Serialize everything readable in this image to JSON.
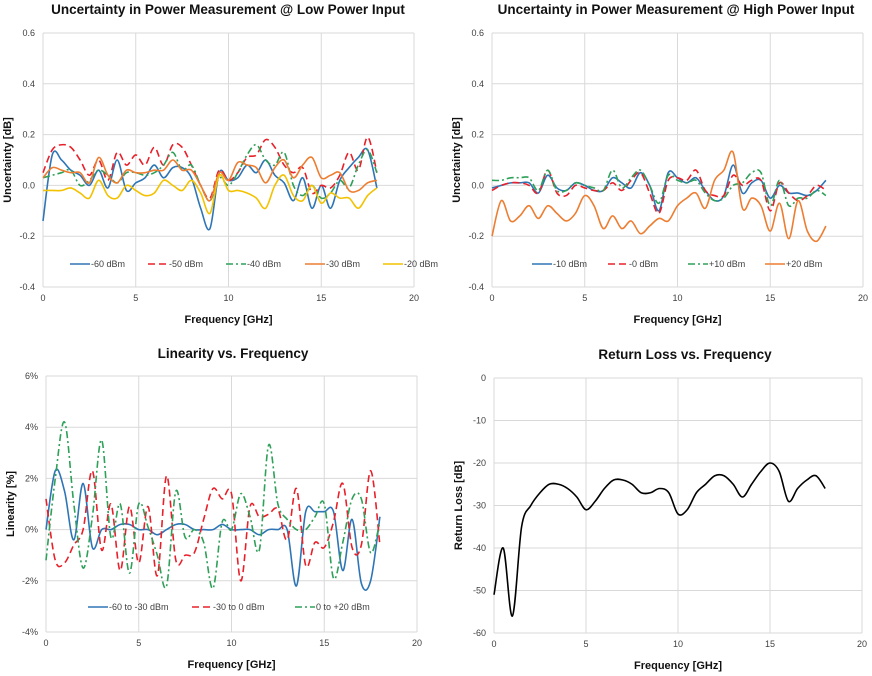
{
  "chart_data": [
    {
      "type": "line",
      "title": "Uncertainty in Power Measurement @ Low Power Input",
      "xlabel": "Frequency [GHz]",
      "ylabel": "Uncertainty [dB]",
      "xlim": [
        0,
        20
      ],
      "ylim": [
        -0.4,
        0.6
      ],
      "xticks": [
        "0",
        "5",
        "10",
        "15",
        "20"
      ],
      "yticks": [
        "-0.4",
        "-0.2",
        "0.0",
        "0.2",
        "0.4",
        "0.6"
      ],
      "grid": true,
      "legend": "bottom-inside",
      "x": [
        0,
        0.5,
        1,
        1.5,
        2,
        2.5,
        3,
        3.5,
        4,
        4.5,
        5,
        5.5,
        6,
        6.5,
        7,
        7.5,
        8,
        8.5,
        9,
        9.5,
        10,
        10.5,
        11,
        11.5,
        12,
        12.5,
        13,
        13.5,
        14,
        14.5,
        15,
        15.5,
        16,
        16.5,
        17,
        17.5,
        18
      ],
      "series": [
        {
          "name": "-60 dBm",
          "color": "#2e75b6",
          "dash": "solid",
          "values": [
            -0.14,
            0.12,
            0.1,
            0.06,
            0.04,
            0.0,
            0.06,
            -0.01,
            0.1,
            -0.02,
            0.01,
            0.03,
            0.08,
            0.03,
            0.07,
            0.07,
            0.03,
            -0.09,
            -0.17,
            0.05,
            0.02,
            0.03,
            0.08,
            0.05,
            0.1,
            0.04,
            0.01,
            -0.06,
            0.03,
            -0.09,
            0.0,
            -0.09,
            0.02,
            0.07,
            0.11,
            0.14,
            -0.01
          ]
        },
        {
          "name": "-50 dBm",
          "color": "#e8202a",
          "dash": "dash",
          "values": [
            0.05,
            0.14,
            0.16,
            0.15,
            0.1,
            0.04,
            0.1,
            0.02,
            0.13,
            0.08,
            0.12,
            0.08,
            0.15,
            0.08,
            0.16,
            0.15,
            0.08,
            0.0,
            -0.05,
            0.06,
            0.02,
            0.05,
            0.11,
            0.12,
            0.18,
            0.15,
            0.08,
            0.05,
            0.07,
            -0.03,
            0.0,
            -0.01,
            0.04,
            0.13,
            0.06,
            0.19,
            0.05
          ]
        },
        {
          "name": "-40 dBm",
          "color": "#2ea058",
          "dash": "dashdot",
          "values": [
            0.03,
            0.04,
            0.05,
            0.06,
            0.0,
            0.02,
            0.06,
            0.04,
            0.01,
            0.05,
            0.05,
            0.04,
            0.05,
            0.08,
            0.13,
            0.06,
            0.08,
            0.0,
            -0.06,
            0.03,
            0.0,
            0.05,
            0.12,
            0.16,
            0.1,
            0.08,
            0.13,
            0.0,
            -0.04,
            0.0,
            -0.05,
            -0.03,
            0.02,
            -0.01,
            0.08,
            0.14,
            0.05
          ]
        },
        {
          "name": "-30 dBm",
          "color": "#ed7d31",
          "dash": "solid",
          "values": [
            0.03,
            0.07,
            0.06,
            0.05,
            0.05,
            0.01,
            0.11,
            0.04,
            0.01,
            0.06,
            0.05,
            0.05,
            0.06,
            0.06,
            0.1,
            0.06,
            0.06,
            0.0,
            -0.06,
            0.05,
            0.02,
            0.09,
            0.08,
            0.07,
            0.01,
            0.07,
            0.1,
            0.03,
            0.08,
            0.11,
            0.03,
            0.04,
            0.05,
            -0.02,
            -0.02,
            0.01,
            0.02
          ]
        },
        {
          "name": "-20 dBm",
          "color": "#f2c200",
          "dash": "solid",
          "values": [
            -0.02,
            -0.02,
            -0.02,
            -0.01,
            -0.03,
            -0.05,
            0.02,
            -0.04,
            -0.05,
            0.0,
            -0.02,
            -0.04,
            -0.03,
            0.02,
            0.0,
            -0.02,
            0.02,
            -0.03,
            -0.11,
            0.04,
            -0.02,
            -0.02,
            -0.03,
            -0.05,
            -0.09,
            0.0,
            0.04,
            -0.04,
            -0.06,
            0.0,
            -0.07,
            -0.03,
            -0.05,
            -0.05,
            -0.09,
            -0.04,
            -0.01
          ]
        }
      ]
    },
    {
      "type": "line",
      "title": "Uncertainty in Power Measurement @ High Power Input",
      "xlabel": "Frequency [GHz]",
      "ylabel": "Uncertainty [dB]",
      "xlim": [
        0,
        20
      ],
      "ylim": [
        -0.4,
        0.6
      ],
      "xticks": [
        "0",
        "5",
        "10",
        "15",
        "20"
      ],
      "yticks": [
        "-0.4",
        "-0.2",
        "0.0",
        "0.2",
        "0.4",
        "0.6"
      ],
      "grid": true,
      "legend": "bottom-inside",
      "x": [
        0,
        0.5,
        1,
        1.5,
        2,
        2.5,
        3,
        3.5,
        4,
        4.5,
        5,
        5.5,
        6,
        6.5,
        7,
        7.5,
        8,
        8.5,
        9,
        9.5,
        10,
        10.5,
        11,
        11.5,
        12,
        12.5,
        13,
        13.5,
        14,
        14.5,
        15,
        15.5,
        16,
        16.5,
        17,
        17.5,
        18
      ],
      "series": [
        {
          "name": "-10 dBm",
          "color": "#2e75b6",
          "dash": "solid",
          "values": [
            -0.01,
            0.0,
            0.01,
            0.01,
            0.01,
            -0.03,
            0.04,
            -0.01,
            -0.02,
            0.01,
            0.0,
            -0.02,
            -0.02,
            0.03,
            0.01,
            -0.01,
            0.05,
            0.0,
            -0.1,
            0.05,
            0.03,
            0.01,
            0.03,
            -0.02,
            -0.06,
            -0.04,
            0.08,
            -0.03,
            0.01,
            0.02,
            -0.05,
            0.0,
            -0.03,
            -0.03,
            -0.04,
            -0.02,
            0.02
          ]
        },
        {
          "name": "-0 dBm",
          "color": "#e8202a",
          "dash": "dash",
          "values": [
            -0.02,
            0.0,
            0.01,
            0.01,
            0.0,
            -0.03,
            0.06,
            -0.03,
            -0.04,
            0.0,
            -0.01,
            -0.02,
            -0.02,
            0.01,
            -0.02,
            0.02,
            0.05,
            -0.03,
            -0.11,
            0.02,
            0.03,
            0.02,
            0.06,
            -0.02,
            -0.04,
            -0.04,
            0.04,
            0.0,
            0.02,
            0.02,
            -0.1,
            0.01,
            -0.03,
            -0.06,
            -0.04,
            0.0,
            -0.02
          ]
        },
        {
          "name": "+10 dBm",
          "color": "#2ea058",
          "dash": "dashdot",
          "values": [
            0.02,
            0.02,
            0.03,
            0.03,
            0.03,
            -0.02,
            0.06,
            -0.02,
            -0.02,
            0.01,
            0.0,
            -0.01,
            -0.02,
            0.06,
            -0.01,
            0.03,
            0.06,
            0.0,
            -0.07,
            0.04,
            0.02,
            0.01,
            0.02,
            -0.03,
            -0.06,
            -0.05,
            0.0,
            0.01,
            0.05,
            0.05,
            -0.08,
            0.02,
            -0.08,
            -0.05,
            -0.05,
            -0.02,
            -0.04
          ]
        },
        {
          "name": "+20 dBm",
          "color": "#ed7d31",
          "dash": "solid",
          "values": [
            -0.2,
            -0.06,
            -0.14,
            -0.12,
            -0.08,
            -0.13,
            -0.08,
            -0.11,
            -0.14,
            -0.11,
            -0.04,
            -0.08,
            -0.17,
            -0.12,
            -0.17,
            -0.14,
            -0.19,
            -0.16,
            -0.13,
            -0.14,
            -0.08,
            -0.05,
            -0.03,
            -0.09,
            0.02,
            0.06,
            0.13,
            -0.09,
            -0.05,
            -0.08,
            -0.18,
            -0.07,
            -0.21,
            -0.06,
            -0.18,
            -0.22,
            -0.16
          ]
        }
      ]
    },
    {
      "type": "line",
      "title": "Linearity vs. Frequency",
      "xlabel": "Frequency [GHz]",
      "ylabel": "Linearity [%]",
      "xlim": [
        0,
        20
      ],
      "ylim": [
        -4,
        6
      ],
      "xticks": [
        "0",
        "5",
        "10",
        "15",
        "20"
      ],
      "yticks": [
        "-4%",
        "-2%",
        "0%",
        "2%",
        "4%",
        "6%"
      ],
      "grid": true,
      "legend": "bottom-inside",
      "x": [
        0,
        0.5,
        1,
        1.5,
        2,
        2.5,
        3,
        3.5,
        4,
        4.5,
        5,
        5.5,
        6,
        6.5,
        7,
        7.5,
        8,
        8.5,
        9,
        9.5,
        10,
        10.5,
        11,
        11.5,
        12,
        12.5,
        13,
        13.5,
        14,
        14.5,
        15,
        15.5,
        16,
        16.5,
        17,
        17.5,
        18
      ],
      "series": [
        {
          "name": "-60 to -30 dBm",
          "color": "#2e75b6",
          "dash": "solid",
          "values": [
            0.0,
            2.3,
            1.5,
            -0.4,
            1.8,
            -0.7,
            0.0,
            0.0,
            0.2,
            0.2,
            0.0,
            0.0,
            -0.2,
            0.0,
            0.2,
            0.2,
            0.0,
            0.0,
            0.0,
            0.2,
            0.0,
            0.0,
            0.0,
            -0.2,
            0.0,
            0.0,
            0.0,
            -2.2,
            0.7,
            0.7,
            0.7,
            0.7,
            -1.6,
            0.4,
            -2.1,
            -2.0,
            0.5
          ]
        },
        {
          "name": "-30 to 0 dBm",
          "color": "#e8202a",
          "dash": "dash",
          "values": [
            1.2,
            -1.2,
            -1.3,
            -0.6,
            0.0,
            2.3,
            -0.8,
            1.0,
            -1.6,
            0.9,
            -1.3,
            0.9,
            -1.8,
            2.1,
            -1.2,
            -1.0,
            -0.9,
            0.4,
            1.6,
            1.2,
            1.4,
            -2.0,
            0.9,
            0.5,
            0.6,
            0.8,
            -0.4,
            1.6,
            -1.4,
            -0.5,
            -0.7,
            0.3,
            1.8,
            -0.7,
            -0.6,
            2.3,
            -0.6
          ]
        },
        {
          "name": "0 to +20 dBm",
          "color": "#2ea058",
          "dash": "dashdot",
          "values": [
            -1.2,
            2.0,
            4.2,
            1.0,
            -1.5,
            0.5,
            3.5,
            -0.3,
            1.0,
            -1.7,
            1.0,
            0.1,
            -1.0,
            -2.2,
            1.5,
            -0.3,
            0.0,
            -0.5,
            -2.3,
            0.3,
            0.0,
            1.4,
            0.5,
            -0.8,
            3.3,
            1.0,
            0.4,
            0.0,
            0.0,
            0.5,
            1.0,
            -1.9,
            -0.5,
            1.2,
            1.2,
            -0.9,
            0.3
          ]
        }
      ]
    },
    {
      "type": "line",
      "title": "Return Loss vs. Frequency",
      "xlabel": "Frequency [GHz]",
      "ylabel": "Return Loss [dB]",
      "xlim": [
        0,
        20
      ],
      "ylim": [
        -60,
        0
      ],
      "xticks": [
        "0",
        "5",
        "10",
        "15",
        "20"
      ],
      "yticks": [
        "-60",
        "-50",
        "-40",
        "-30",
        "-20",
        "-10",
        "0"
      ],
      "grid": true,
      "legend": "none",
      "x": [
        0,
        0.5,
        1,
        1.5,
        2,
        2.5,
        3,
        3.5,
        4,
        4.5,
        5,
        5.5,
        6,
        6.5,
        7,
        7.5,
        8,
        8.5,
        9,
        9.5,
        10,
        10.5,
        11,
        11.5,
        12,
        12.5,
        13,
        13.5,
        14,
        14.5,
        15,
        15.5,
        16,
        16.5,
        17,
        17.5,
        18
      ],
      "series": [
        {
          "name": "Return Loss",
          "color": "#000000",
          "dash": "solid",
          "values": [
            -51,
            -40,
            -56,
            -35,
            -30,
            -27,
            -25,
            -25,
            -26,
            -28,
            -31,
            -29,
            -26,
            -24,
            -24,
            -25,
            -27,
            -27,
            -26,
            -27,
            -32,
            -31,
            -27,
            -25,
            -23,
            -23,
            -25,
            -28,
            -25,
            -22,
            -20,
            -22,
            -29,
            -26,
            -24,
            -23,
            -26
          ]
        }
      ]
    }
  ]
}
